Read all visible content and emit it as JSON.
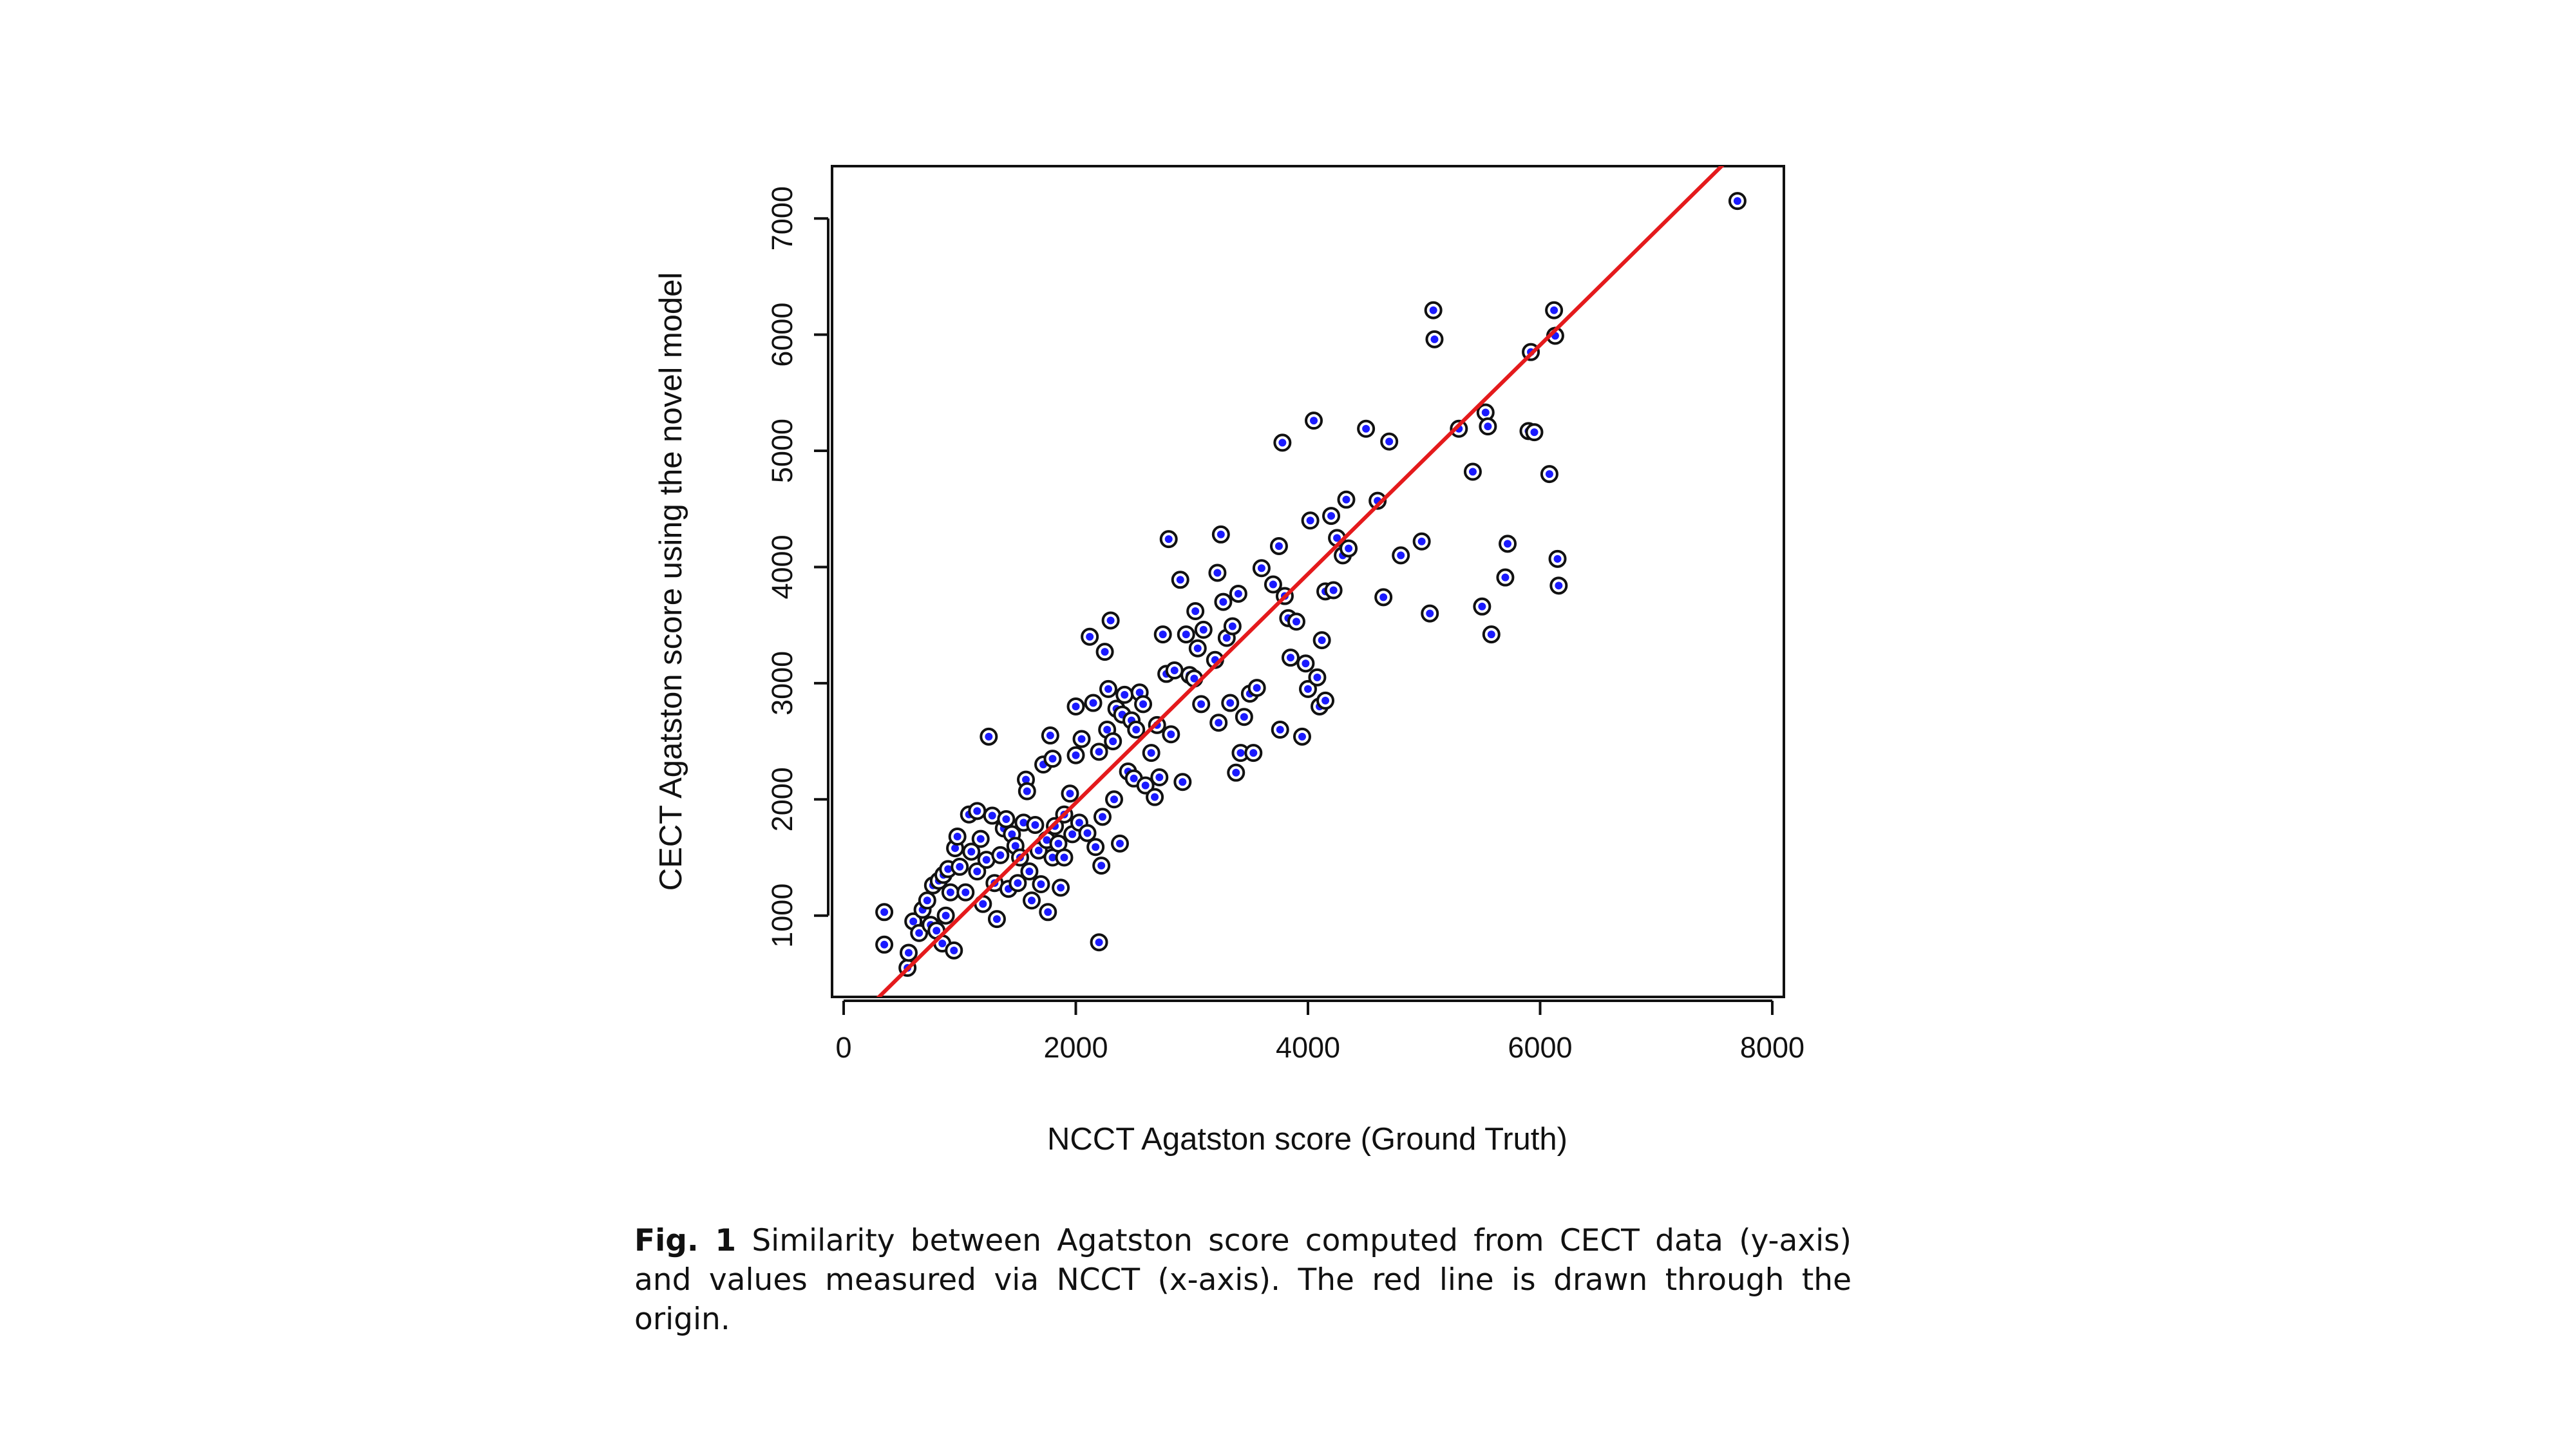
{
  "chart_data": {
    "type": "scatter",
    "xlabel": "NCCT Agatston score (Ground Truth)",
    "ylabel": "CECT Agatston score using the novel model",
    "xlim": [
      -100,
      8100
    ],
    "ylim": [
      300,
      7450
    ],
    "xticks": [
      0,
      2000,
      4000,
      6000,
      8000
    ],
    "yticks": [
      1000,
      2000,
      3000,
      4000,
      5000,
      6000,
      7000
    ],
    "grid": false,
    "reference_line": {
      "description": "line drawn through the origin",
      "slope": 0.985,
      "intercept": 0,
      "color": "#e41a1c"
    },
    "marker": {
      "fill": "#1a1aff",
      "ring": "#111111"
    },
    "points": [
      [
        350,
        1030
      ],
      [
        350,
        750
      ],
      [
        550,
        550
      ],
      [
        560,
        680
      ],
      [
        600,
        950
      ],
      [
        650,
        850
      ],
      [
        680,
        1050
      ],
      [
        720,
        1130
      ],
      [
        750,
        920
      ],
      [
        770,
        1260
      ],
      [
        800,
        870
      ],
      [
        820,
        1300
      ],
      [
        850,
        760
      ],
      [
        860,
        1350
      ],
      [
        880,
        1000
      ],
      [
        900,
        1400
      ],
      [
        920,
        1200
      ],
      [
        950,
        700
      ],
      [
        960,
        1580
      ],
      [
        980,
        1680
      ],
      [
        1000,
        1420
      ],
      [
        1050,
        1200
      ],
      [
        1080,
        1870
      ],
      [
        1100,
        1550
      ],
      [
        1150,
        1900
      ],
      [
        1150,
        1380
      ],
      [
        1180,
        1660
      ],
      [
        1200,
        1100
      ],
      [
        1230,
        1480
      ],
      [
        1250,
        2540
      ],
      [
        1280,
        1860
      ],
      [
        1300,
        1280
      ],
      [
        1320,
        970
      ],
      [
        1350,
        1520
      ],
      [
        1380,
        1750
      ],
      [
        1400,
        1830
      ],
      [
        1420,
        1230
      ],
      [
        1450,
        1700
      ],
      [
        1480,
        1600
      ],
      [
        1500,
        1280
      ],
      [
        1520,
        1500
      ],
      [
        1550,
        1800
      ],
      [
        1570,
        2170
      ],
      [
        1580,
        2070
      ],
      [
        1600,
        1380
      ],
      [
        1620,
        1130
      ],
      [
        1650,
        1780
      ],
      [
        1680,
        1560
      ],
      [
        1700,
        1270
      ],
      [
        1720,
        2300
      ],
      [
        1750,
        1650
      ],
      [
        1760,
        1030
      ],
      [
        1780,
        2550
      ],
      [
        1800,
        2350
      ],
      [
        1800,
        1500
      ],
      [
        1820,
        1770
      ],
      [
        1850,
        1620
      ],
      [
        1870,
        1240
      ],
      [
        1900,
        1870
      ],
      [
        1900,
        1500
      ],
      [
        1950,
        2050
      ],
      [
        1970,
        1700
      ],
      [
        2000,
        2800
      ],
      [
        2000,
        2380
      ],
      [
        2030,
        1800
      ],
      [
        2050,
        2520
      ],
      [
        2100,
        1710
      ],
      [
        2120,
        3400
      ],
      [
        2150,
        2830
      ],
      [
        2170,
        1590
      ],
      [
        2200,
        2410
      ],
      [
        2200,
        770
      ],
      [
        2220,
        1430
      ],
      [
        2230,
        1850
      ],
      [
        2250,
        3270
      ],
      [
        2270,
        2600
      ],
      [
        2280,
        2950
      ],
      [
        2300,
        3540
      ],
      [
        2320,
        2500
      ],
      [
        2330,
        2000
      ],
      [
        2350,
        2780
      ],
      [
        2380,
        1620
      ],
      [
        2400,
        2730
      ],
      [
        2420,
        2900
      ],
      [
        2450,
        2240
      ],
      [
        2480,
        2680
      ],
      [
        2500,
        2180
      ],
      [
        2520,
        2600
      ],
      [
        2550,
        2920
      ],
      [
        2580,
        2820
      ],
      [
        2600,
        2120
      ],
      [
        2650,
        2400
      ],
      [
        2680,
        2020
      ],
      [
        2700,
        2640
      ],
      [
        2720,
        2190
      ],
      [
        2750,
        3420
      ],
      [
        2780,
        3080
      ],
      [
        2800,
        4240
      ],
      [
        2820,
        2560
      ],
      [
        2850,
        3110
      ],
      [
        2900,
        3890
      ],
      [
        2920,
        2150
      ],
      [
        2950,
        3420
      ],
      [
        2980,
        3070
      ],
      [
        3020,
        3040
      ],
      [
        3030,
        3620
      ],
      [
        3050,
        3300
      ],
      [
        3080,
        2820
      ],
      [
        3100,
        3460
      ],
      [
        3200,
        3200
      ],
      [
        3220,
        3950
      ],
      [
        3230,
        2660
      ],
      [
        3250,
        4280
      ],
      [
        3270,
        3700
      ],
      [
        3300,
        3390
      ],
      [
        3330,
        2830
      ],
      [
        3350,
        3490
      ],
      [
        3380,
        2230
      ],
      [
        3400,
        3770
      ],
      [
        3420,
        2400
      ],
      [
        3450,
        2710
      ],
      [
        3500,
        2910
      ],
      [
        3530,
        2400
      ],
      [
        3560,
        2960
      ],
      [
        3600,
        3990
      ],
      [
        3700,
        3850
      ],
      [
        3750,
        4180
      ],
      [
        3760,
        2600
      ],
      [
        3780,
        5070
      ],
      [
        3800,
        3750
      ],
      [
        3830,
        3560
      ],
      [
        3850,
        3220
      ],
      [
        3900,
        3530
      ],
      [
        3950,
        2540
      ],
      [
        3980,
        3170
      ],
      [
        4000,
        2950
      ],
      [
        4020,
        4400
      ],
      [
        4050,
        5260
      ],
      [
        4080,
        3050
      ],
      [
        4100,
        2800
      ],
      [
        4120,
        3370
      ],
      [
        4150,
        3790
      ],
      [
        4150,
        2850
      ],
      [
        4200,
        4440
      ],
      [
        4220,
        3800
      ],
      [
        4250,
        4250
      ],
      [
        4300,
        4100
      ],
      [
        4330,
        4580
      ],
      [
        4350,
        4160
      ],
      [
        4500,
        5190
      ],
      [
        4600,
        4570
      ],
      [
        4650,
        3740
      ],
      [
        4700,
        5080
      ],
      [
        4800,
        4100
      ],
      [
        4980,
        4220
      ],
      [
        5050,
        3600
      ],
      [
        5080,
        6210
      ],
      [
        5090,
        5960
      ],
      [
        5300,
        5190
      ],
      [
        5420,
        4820
      ],
      [
        5500,
        3660
      ],
      [
        5530,
        5330
      ],
      [
        5550,
        5210
      ],
      [
        5580,
        3420
      ],
      [
        5700,
        3910
      ],
      [
        5720,
        4200
      ],
      [
        5900,
        5170
      ],
      [
        5920,
        5850
      ],
      [
        5950,
        5160
      ],
      [
        6080,
        4800
      ],
      [
        6120,
        6210
      ],
      [
        6130,
        5990
      ],
      [
        6150,
        4070
      ],
      [
        6160,
        3840
      ],
      [
        7700,
        7150
      ]
    ]
  },
  "caption": {
    "label": "Fig. 1",
    "text": " Similarity between Agatston score computed from CECT data (y-axis) and values measured via NCCT (x-axis). The red line is drawn through the origin."
  }
}
